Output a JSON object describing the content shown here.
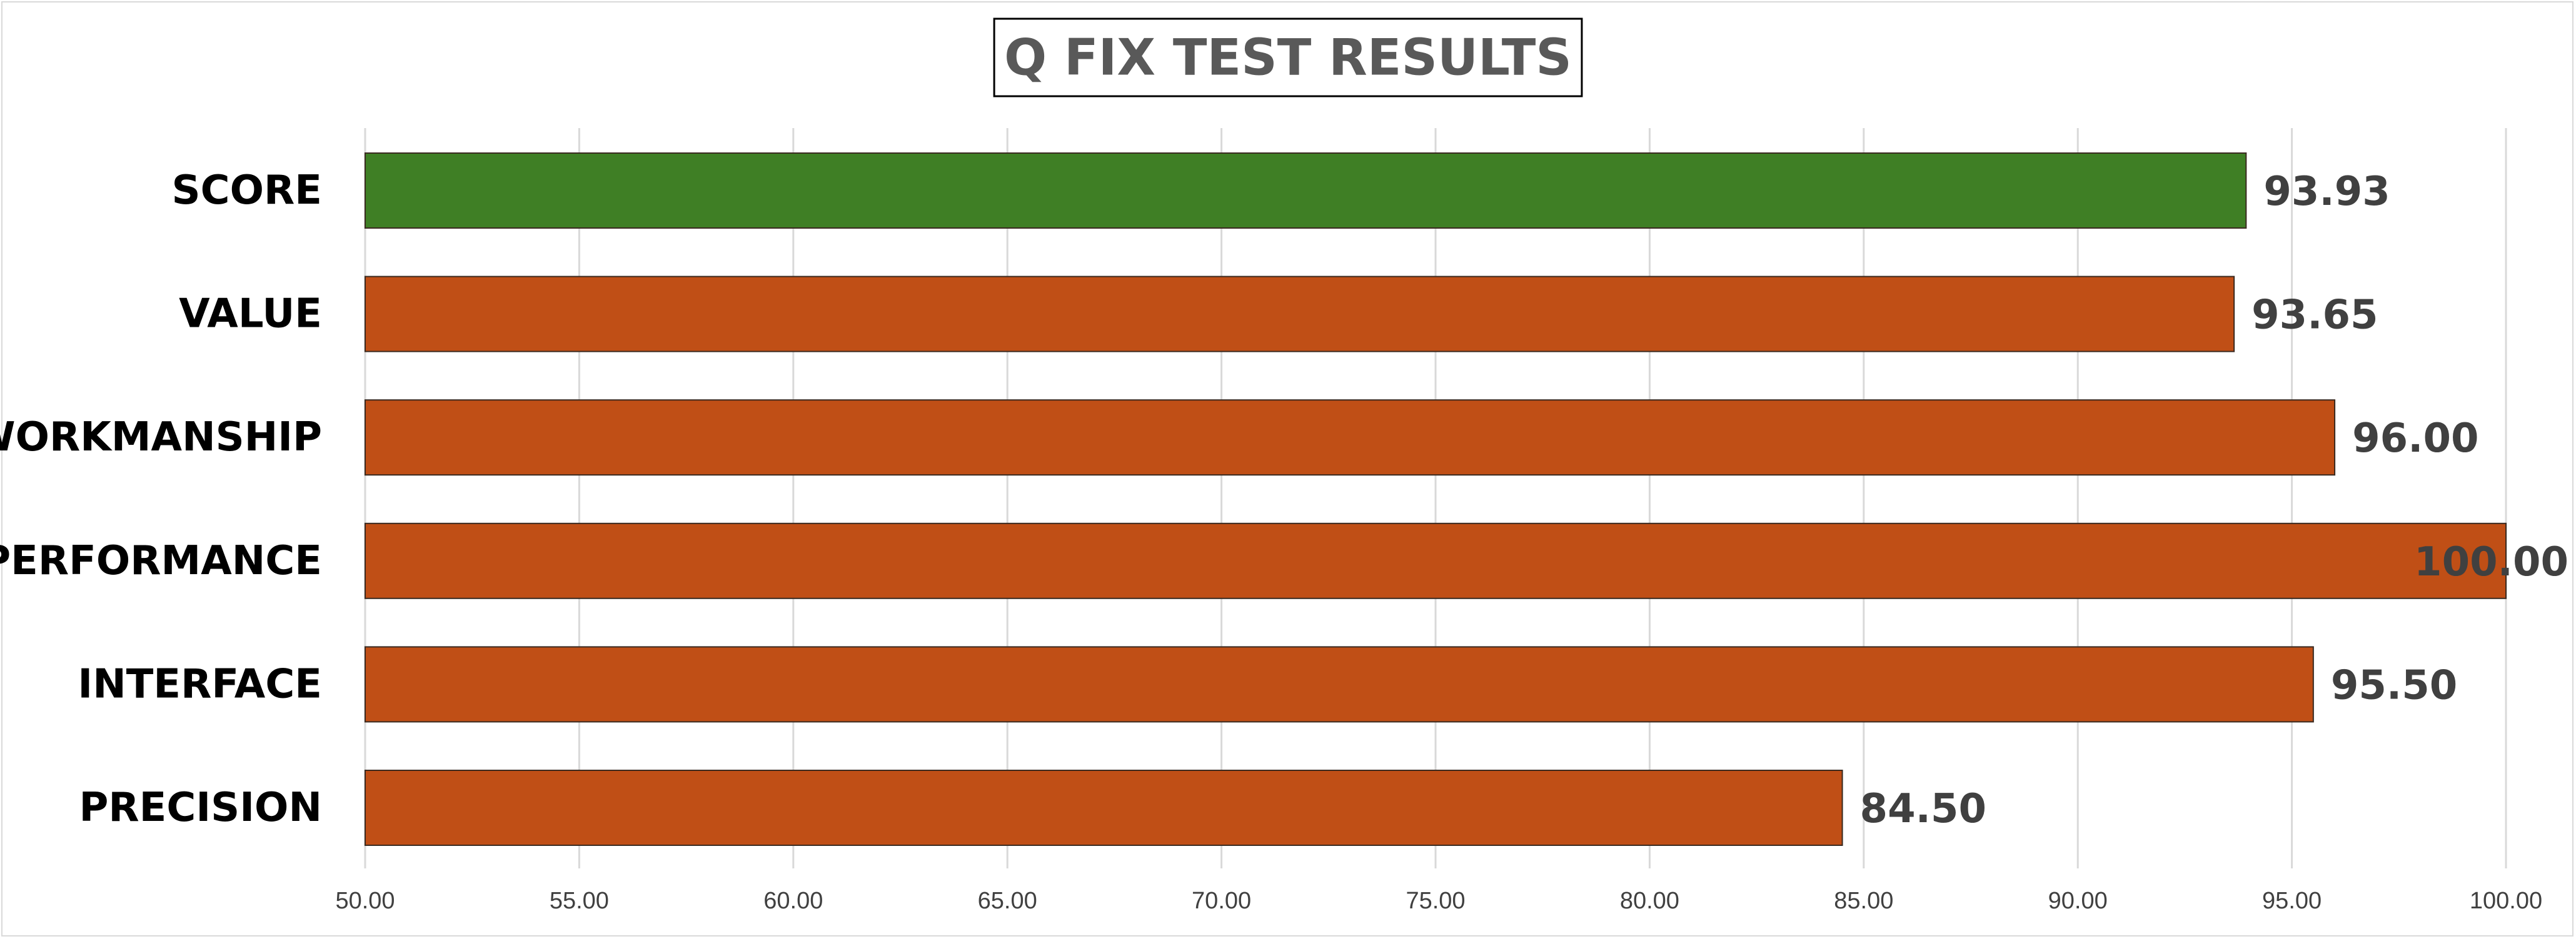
{
  "chart_data": {
    "type": "bar",
    "orientation": "horizontal",
    "title": "Q FIX TEST RESULTS",
    "categories": [
      "SCORE",
      "VALUE",
      "WORKMANSHIP",
      "PERFORMANCE",
      "INTERFACE",
      "PRECISION"
    ],
    "values": [
      93.93,
      93.65,
      96.0,
      100.0,
      95.5,
      84.5
    ],
    "data_labels": [
      "93.93",
      "93.65",
      "96.00",
      "100.00",
      "95.50",
      "84.50"
    ],
    "bar_colors": [
      "#3f7f25",
      "#c04f16",
      "#c04f16",
      "#c04f16",
      "#c04f16",
      "#c04f16"
    ],
    "xlim": [
      50,
      100
    ],
    "x_ticks": [
      50,
      55,
      60,
      65,
      70,
      75,
      80,
      85,
      90,
      95,
      100
    ],
    "x_tick_labels": [
      "50.00",
      "55.00",
      "60.00",
      "65.00",
      "70.00",
      "75.00",
      "80.00",
      "85.00",
      "90.00",
      "95.00",
      "100.00"
    ],
    "grid": "vertical",
    "legend": "none",
    "colors": {
      "gridline": "#d9d9d9",
      "bar_edge": "#3a2a20",
      "title": "#595959",
      "data_label": "#404040"
    }
  }
}
